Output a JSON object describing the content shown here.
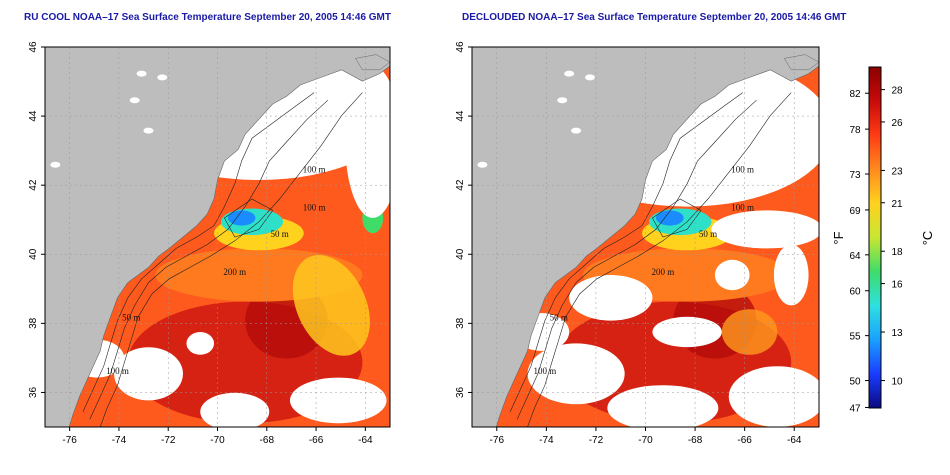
{
  "panels": [
    {
      "title": "RU COOL NOAA–17 Sea Surface Temperature September 20, 2005 14:46 GMT",
      "variant": "raw"
    },
    {
      "title": "DECLOUDED NOAA–17 Sea Surface Temperature September 20, 2005 14:46 GMT",
      "variant": "declouded"
    }
  ],
  "map": {
    "lon_ticks": [
      "-76",
      "-74",
      "-72",
      "-70",
      "-68",
      "-66",
      "-64"
    ],
    "lat_ticks": [
      "46",
      "44",
      "42",
      "40",
      "38",
      "36"
    ],
    "lon_range": [
      -77,
      -63
    ],
    "lat_range": [
      35,
      46
    ],
    "contour_labels": [
      "100 m",
      "100 m",
      "50 m",
      "200 m",
      "50 m",
      "100 m"
    ],
    "land_color": "#bdbdbd",
    "no_data_color": "#ffffff"
  },
  "colorbar": {
    "f_label": "°F",
    "c_label": "°C",
    "f_ticks": [
      "82",
      "78",
      "73",
      "69",
      "64",
      "60",
      "55",
      "50",
      "47"
    ],
    "f_values": [
      82,
      78,
      73,
      69,
      64,
      60,
      55,
      50,
      47
    ],
    "c_ticks": [
      "28",
      "26",
      "23",
      "21",
      "18",
      "16",
      "13",
      "10"
    ],
    "c_values": [
      28,
      26,
      23,
      21,
      18,
      16,
      13,
      10
    ],
    "c_min": 8.3,
    "c_max": 29.4,
    "colors": [
      "#0a0a80",
      "#1a3cff",
      "#1aa0ff",
      "#2ee0e0",
      "#3fdc6a",
      "#c8e632",
      "#ffd21e",
      "#ff8a1e",
      "#ff3c14",
      "#c80a0a",
      "#8a0000"
    ]
  }
}
